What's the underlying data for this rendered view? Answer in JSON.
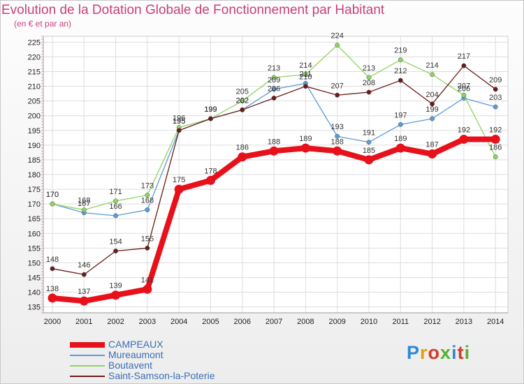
{
  "title": "Evolution de la Dotation Globale de Fonctionnement par Habitant",
  "subtitle": "(en € et par an)",
  "logo": {
    "text": "Proxiti",
    "colors": [
      "#2e8ad8",
      "#e2a010",
      "#d83a2a",
      "#58b030",
      "#2e8ad8",
      "#d83a2a",
      "#58b030"
    ]
  },
  "chart_data": {
    "type": "line",
    "x": [
      "2000",
      "2001",
      "2002",
      "2003",
      "2004",
      "2005",
      "2006",
      "2007",
      "2008",
      "2009",
      "2010",
      "2011",
      "2012",
      "2013",
      "2014"
    ],
    "ylim": [
      133,
      227
    ],
    "yticks": [
      135,
      140,
      145,
      150,
      155,
      160,
      165,
      170,
      175,
      180,
      185,
      190,
      195,
      200,
      205,
      210,
      215,
      220,
      225
    ],
    "grid": true,
    "legend_position": "bottom-left",
    "series": [
      {
        "name": "CAMPEAUX",
        "color": "#e8101a",
        "values": [
          138,
          137,
          139,
          141,
          175,
          178,
          186,
          188,
          189,
          188,
          185,
          189,
          187,
          192,
          192
        ]
      },
      {
        "name": "Mureaumont",
        "color": "#5b9bd5",
        "values": [
          170,
          167,
          166,
          168,
          195,
          199,
          202,
          209,
          211,
          193,
          191,
          197,
          199,
          206,
          203
        ]
      },
      {
        "name": "Boutavent",
        "color": "#8fd45f",
        "values": [
          170,
          168,
          171,
          173,
          196,
          199,
          205,
          213,
          214,
          224,
          213,
          219,
          214,
          207,
          186
        ]
      },
      {
        "name": "Saint-Samson-la-Poterie",
        "color": "#6b1a1a",
        "values": [
          148,
          146,
          154,
          155,
          195,
          199,
          202,
          206,
          210,
          207,
          208,
          212,
          204,
          217,
          209
        ]
      }
    ]
  }
}
